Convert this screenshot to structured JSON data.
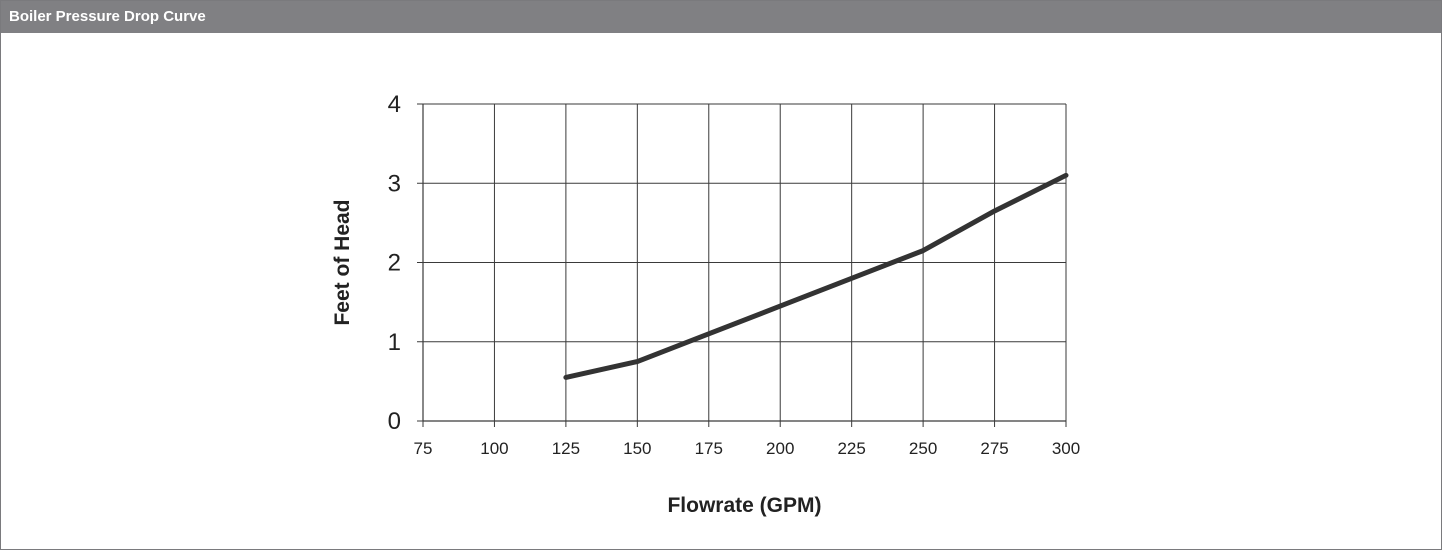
{
  "panel": {
    "title": "Boiler Pressure Drop Curve"
  },
  "chart_data": {
    "type": "line",
    "title": "",
    "xlabel": "Flowrate (GPM)",
    "ylabel": "Feet of Head",
    "xlim": [
      75,
      300
    ],
    "ylim": [
      0,
      4
    ],
    "x_ticks": [
      75,
      100,
      125,
      150,
      175,
      200,
      225,
      250,
      275,
      300
    ],
    "y_ticks": [
      0,
      1,
      2,
      3,
      4
    ],
    "grid": true,
    "legend": "none",
    "series": [
      {
        "color": "#333333",
        "points": [
          {
            "x": 125,
            "y": 0.55
          },
          {
            "x": 150,
            "y": 0.75
          },
          {
            "x": 175,
            "y": 1.1
          },
          {
            "x": 200,
            "y": 1.45
          },
          {
            "x": 225,
            "y": 1.8
          },
          {
            "x": 250,
            "y": 2.15
          },
          {
            "x": 275,
            "y": 2.65
          },
          {
            "x": 300,
            "y": 3.1
          }
        ]
      }
    ]
  }
}
